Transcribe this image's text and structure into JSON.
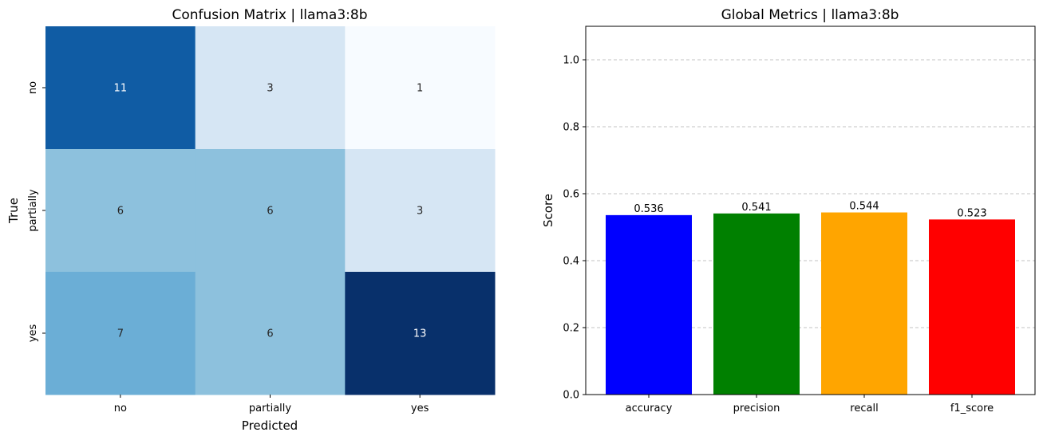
{
  "chart_data": [
    {
      "type": "heatmap",
      "title": "Confusion Matrix | llama3:8b",
      "xlabel": "Predicted",
      "ylabel": "True",
      "x_categories": [
        "no",
        "partially",
        "yes"
      ],
      "y_categories": [
        "no",
        "partially",
        "yes"
      ],
      "values": [
        [
          11,
          3,
          1
        ],
        [
          6,
          6,
          3
        ],
        [
          7,
          6,
          13
        ]
      ],
      "colormap": "Blues",
      "colorbar": false
    },
    {
      "type": "bar",
      "title": "Global Metrics | llama3:8b",
      "xlabel": "",
      "ylabel": "Score",
      "categories": [
        "accuracy",
        "precision",
        "recall",
        "f1_score"
      ],
      "values": [
        0.536,
        0.541,
        0.544,
        0.523
      ],
      "value_labels": [
        "0.536",
        "0.541",
        "0.544",
        "0.523"
      ],
      "colors": [
        "#0000ff",
        "#008000",
        "#ffa500",
        "#ff0000"
      ],
      "ylim": [
        0,
        1.1
      ],
      "yticks": [
        0.0,
        0.2,
        0.4,
        0.6,
        0.8,
        1.0
      ],
      "ytick_labels": [
        "0.0",
        "0.2",
        "0.4",
        "0.6",
        "0.8",
        "1.0"
      ],
      "grid": "y-dashed"
    }
  ]
}
